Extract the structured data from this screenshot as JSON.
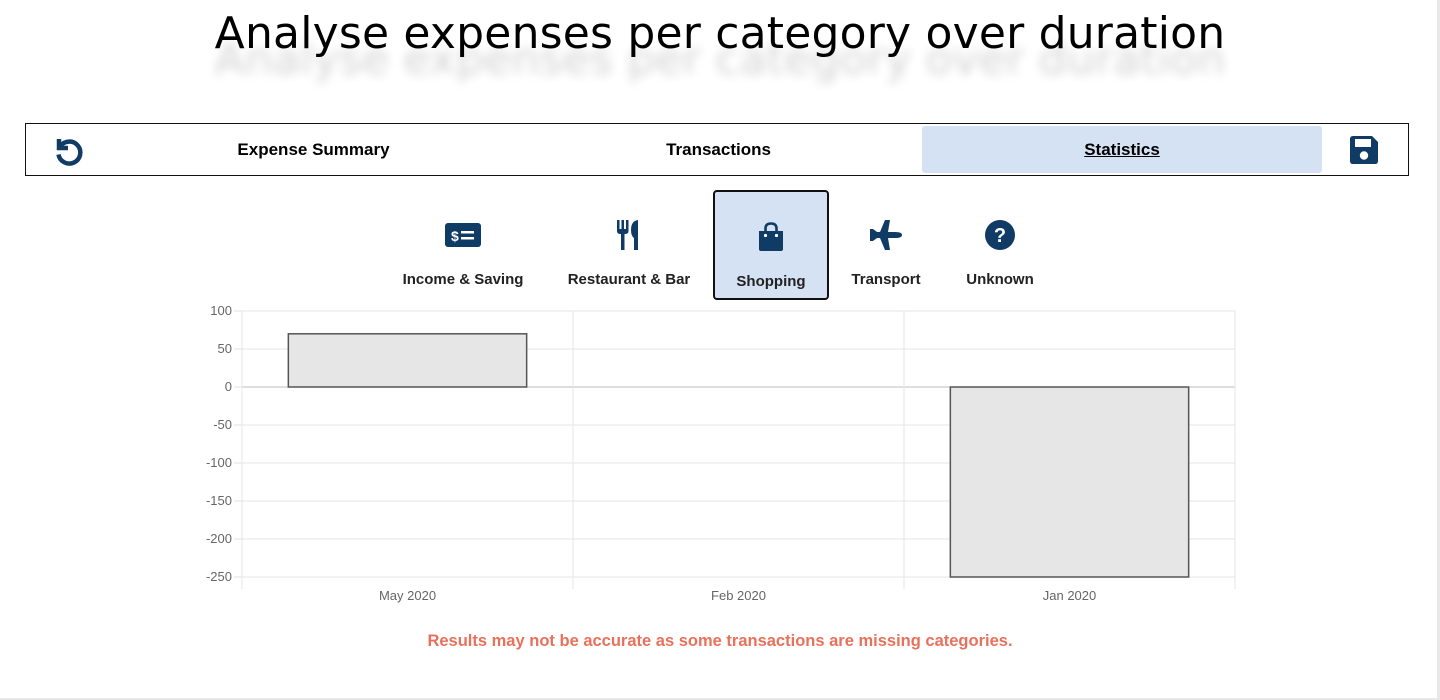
{
  "page": {
    "title": "Analyse expenses per category over duration"
  },
  "nav": {
    "reset_icon": "reset-icon",
    "save_icon": "save-icon",
    "tabs": [
      {
        "label": "Expense Summary",
        "active": false
      },
      {
        "label": "Transactions",
        "active": false
      },
      {
        "label": "Statistics",
        "active": true
      }
    ]
  },
  "categories": [
    {
      "label": "Income & Saving",
      "icon": "money-check-icon",
      "selected": false
    },
    {
      "label": "Restaurant & Bar",
      "icon": "utensils-icon",
      "selected": false
    },
    {
      "label": "Shopping",
      "icon": "shopping-bag-icon",
      "selected": true
    },
    {
      "label": "Transport",
      "icon": "plane-icon",
      "selected": false
    },
    {
      "label": "Unknown",
      "icon": "question-circle-icon",
      "selected": false
    }
  ],
  "colors": {
    "icon": "#103b64",
    "selected_bg": "#d4e2f4",
    "bar_fill": "#e6e6e6",
    "bar_stroke": "#555555",
    "warning": "#e8715c"
  },
  "chart_data": {
    "type": "bar",
    "categories": [
      "May 2020",
      "Feb 2020",
      "Jan 2020"
    ],
    "values": [
      70,
      0,
      -250
    ],
    "title": "",
    "xlabel": "",
    "ylabel": "",
    "ylim": [
      -250,
      100
    ],
    "yticks": [
      100,
      50,
      0,
      -50,
      -100,
      -150,
      -200,
      -250
    ],
    "grid": true,
    "legend": "none"
  },
  "warning": "Results may not be accurate as some transactions are missing categories."
}
